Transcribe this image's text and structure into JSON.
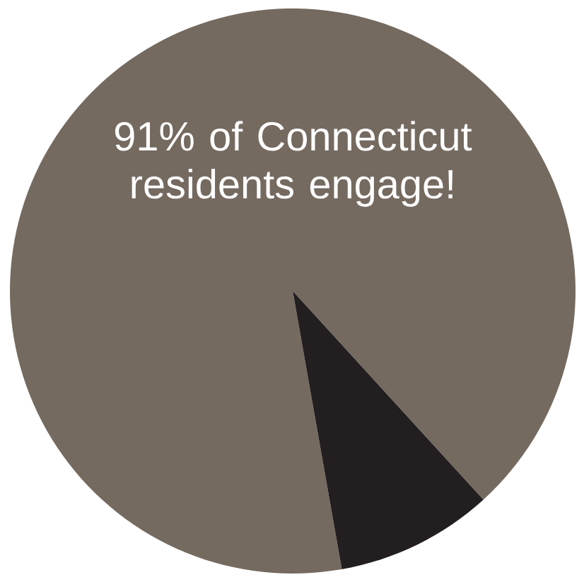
{
  "chart_data": {
    "type": "pie",
    "categories": [
      null,
      null
    ],
    "values": [
      91,
      9
    ],
    "colors": [
      "#756a60",
      "#231f20"
    ],
    "annotations": [
      "91% of Connecticut residents engage!"
    ]
  }
}
